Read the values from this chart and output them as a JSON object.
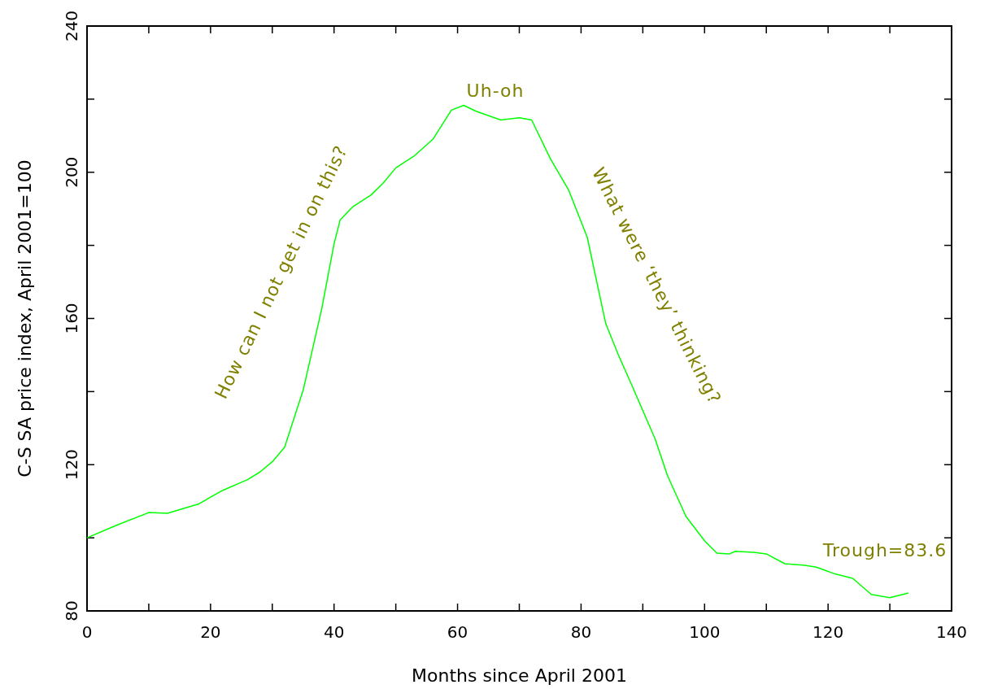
{
  "chart_data": {
    "type": "line",
    "xlabel": "Months since April 2001",
    "ylabel": "C-S SA price index, April 2001=100",
    "x": [
      0,
      5,
      10,
      13,
      18,
      22,
      26,
      28,
      30,
      32,
      35,
      38,
      40,
      41,
      43,
      46,
      48,
      50,
      53,
      56,
      59,
      61,
      63,
      67,
      70,
      72,
      75,
      78,
      81,
      84,
      86,
      88,
      92,
      94,
      97,
      100,
      102,
      104,
      105,
      108,
      110,
      113,
      116,
      118,
      121,
      124,
      127,
      130,
      133
    ],
    "series": [
      {
        "color": "#00ff00",
        "values": [
          100,
          103.6,
          106.9,
          106.7,
          109.2,
          113,
          115.9,
          118,
          120.8,
          124.8,
          140.4,
          162.6,
          180.4,
          187,
          190.5,
          193.8,
          197.1,
          201.2,
          204.5,
          209,
          217,
          218.3,
          216.7,
          214.3,
          214.9,
          214.3,
          203.8,
          195.1,
          182.2,
          158.6,
          150.2,
          142.6,
          127,
          117,
          105.8,
          99.2,
          95.8,
          95.6,
          96.3,
          96,
          95.6,
          92.9,
          92.5,
          92,
          90.2,
          88.9,
          84.5,
          83.6,
          84.9
        ]
      }
    ],
    "xlim": [
      0,
      140
    ],
    "ylim": [
      80,
      240
    ],
    "xticks": [
      0,
      {
        "value": 10,
        "label": null
      },
      20,
      {
        "value": 30,
        "label": null
      },
      40,
      {
        "value": 50,
        "label": null
      },
      60,
      {
        "value": 70,
        "label": null
      },
      80,
      {
        "value": 90,
        "label": null
      },
      100,
      {
        "value": 110,
        "label": null
      },
      120,
      {
        "value": 130,
        "label": null
      },
      140
    ],
    "yticks": [
      80,
      {
        "value": 100,
        "label": null
      },
      120,
      {
        "value": 140,
        "label": null
      },
      160,
      {
        "value": 180,
        "label": null
      },
      200,
      {
        "value": 220,
        "label": null
      },
      240
    ],
    "annotations": [
      "How can I not get in on this?",
      "Uh-oh",
      "What were ‘they’ thinking?",
      "Trough=83.6"
    ],
    "grid": false,
    "marker": "none",
    "line_style": "solid"
  }
}
